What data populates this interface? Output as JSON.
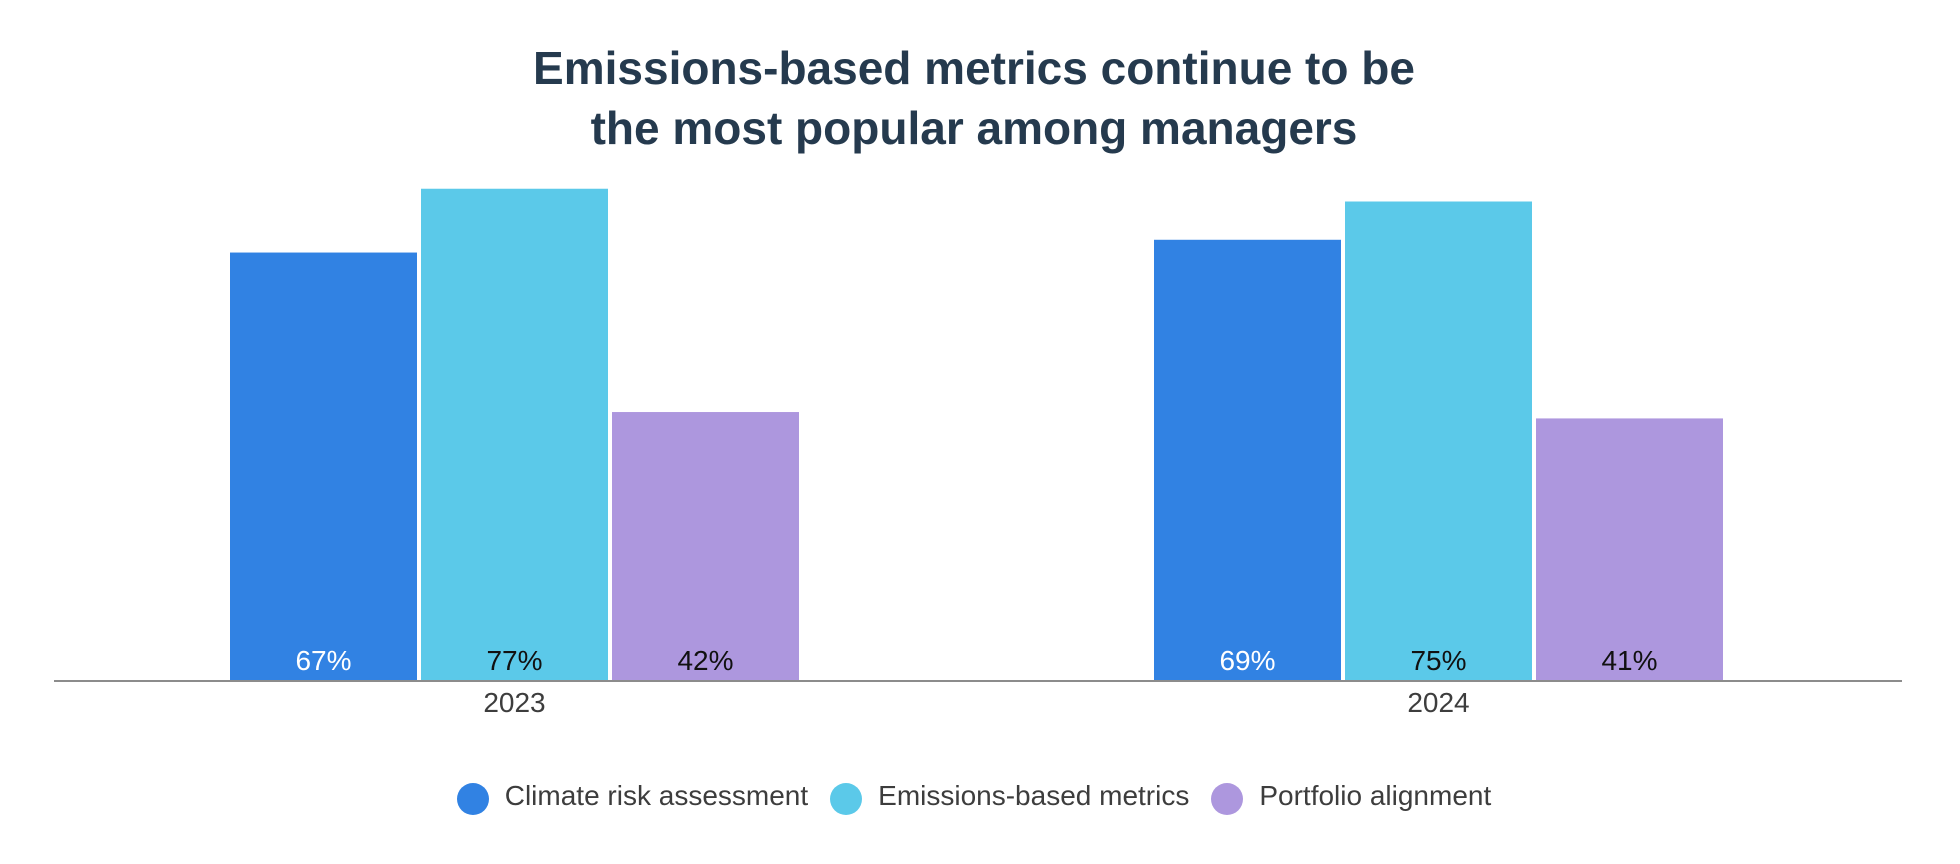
{
  "chart_data": {
    "type": "bar",
    "title_lines": [
      "Emissions-based metrics continue to be",
      "the most popular among managers"
    ],
    "categories": [
      "2023",
      "2024"
    ],
    "series": [
      {
        "name": "Climate risk assessment",
        "values": [
          67,
          69
        ],
        "labels": [
          "67%",
          "69%"
        ],
        "color": "#3182e3",
        "label_color": "#ffffff"
      },
      {
        "name": "Emissions-based metrics",
        "values": [
          77,
          75
        ],
        "labels": [
          "77%",
          "75%"
        ],
        "color": "#5bc9e9",
        "label_color": "#111111"
      },
      {
        "name": "Portfolio alignment",
        "values": [
          42,
          41
        ],
        "labels": [
          "42%",
          "41%"
        ],
        "color": "#ad97de",
        "label_color": "#111111"
      }
    ],
    "value_unit": "%",
    "ylim": [
      0,
      80
    ],
    "grid": false,
    "legend_position": "bottom-center",
    "xlabel": "",
    "ylabel": ""
  }
}
